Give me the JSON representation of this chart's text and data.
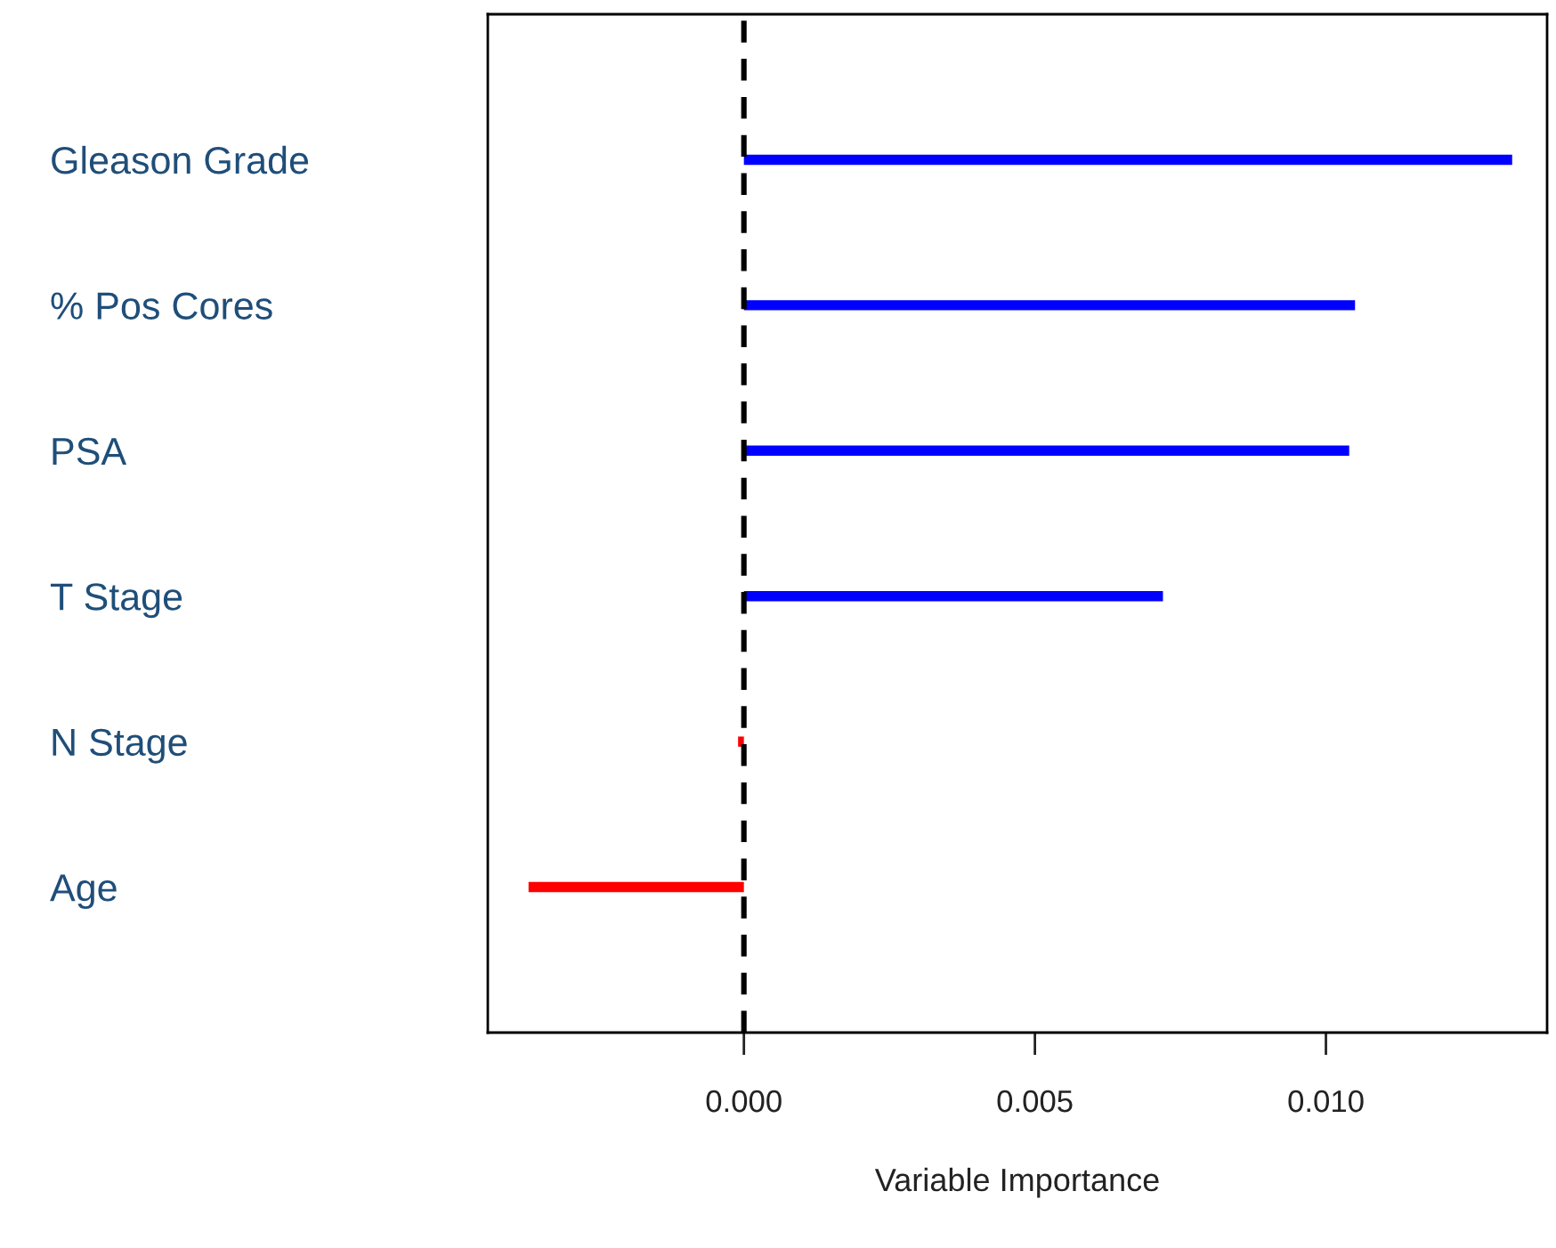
{
  "chart_data": {
    "type": "bar",
    "orientation": "horizontal",
    "xlabel": "Variable Importance",
    "categories": [
      "Gleason Grade",
      "% Pos Cores",
      "PSA",
      "T Stage",
      "N Stage",
      "Age"
    ],
    "values": [
      0.0132,
      0.0105,
      0.0104,
      0.0072,
      -0.0001,
      -0.0037
    ],
    "colors": [
      "#0000ff",
      "#0000ff",
      "#0000ff",
      "#0000ff",
      "#ff0000",
      "#ff0000"
    ],
    "xlim": [
      -0.0044,
      0.0138
    ],
    "xticks": [
      {
        "value": 0,
        "label": "0.000"
      },
      {
        "value": 0.005,
        "label": "0.005"
      },
      {
        "value": 0.01,
        "label": "0.010"
      }
    ],
    "ref_lines": [
      {
        "axis": "x",
        "value": 0,
        "color": "#000000",
        "line_style": "dashed"
      }
    ],
    "grid": false,
    "legend": false
  }
}
